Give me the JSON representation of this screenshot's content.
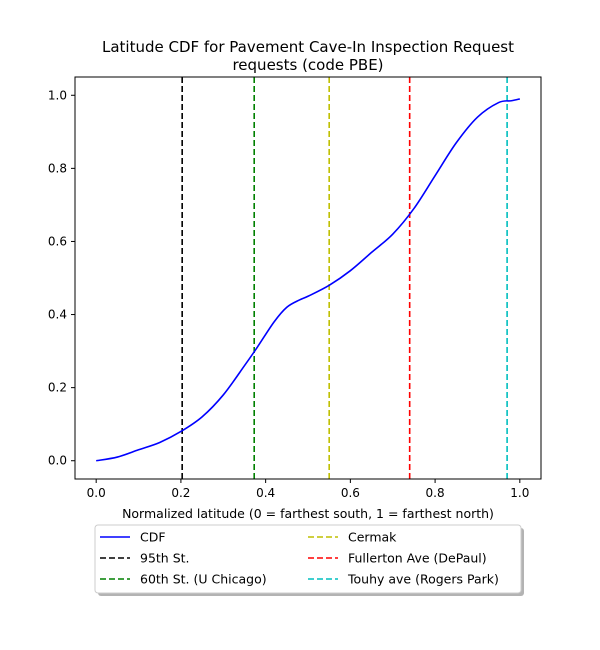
{
  "chart_data": {
    "type": "line",
    "title_line1": "Latitude CDF for Pavement Cave-In Inspection Request",
    "title_line2": "requests (code PBE)",
    "xlabel": "Normalized latitude (0 = farthest south, 1 = farthest north)",
    "ylabel": "",
    "xlim": [
      -0.05,
      1.05
    ],
    "ylim": [
      -0.05,
      1.05
    ],
    "xticks": [
      0.0,
      0.2,
      0.4,
      0.6,
      0.8,
      1.0
    ],
    "xtick_labels": [
      "0.0",
      "0.2",
      "0.4",
      "0.6",
      "0.8",
      "1.0"
    ],
    "yticks": [
      0.0,
      0.2,
      0.4,
      0.6,
      0.8,
      1.0
    ],
    "ytick_labels": [
      "0.0",
      "0.2",
      "0.4",
      "0.6",
      "0.8",
      "1.0"
    ],
    "grid": false,
    "legend_placement": "below",
    "series": [
      {
        "name": "CDF",
        "color": "#0000ff",
        "style": "solid",
        "x": [
          0.0,
          0.05,
          0.1,
          0.15,
          0.2,
          0.25,
          0.3,
          0.35,
          0.38,
          0.42,
          0.45,
          0.48,
          0.5,
          0.55,
          0.6,
          0.65,
          0.7,
          0.75,
          0.8,
          0.85,
          0.9,
          0.95,
          0.98,
          1.0
        ],
        "y": [
          0.0,
          0.01,
          0.03,
          0.05,
          0.08,
          0.12,
          0.18,
          0.26,
          0.31,
          0.38,
          0.42,
          0.44,
          0.45,
          0.48,
          0.52,
          0.57,
          0.62,
          0.69,
          0.78,
          0.87,
          0.94,
          0.98,
          0.985,
          0.99
        ]
      }
    ],
    "vlines": [
      {
        "name": "95th St.",
        "x": 0.203,
        "color": "#000000"
      },
      {
        "name": "60th St. (U Chicago)",
        "x": 0.373,
        "color": "#008000"
      },
      {
        "name": "Cermak",
        "x": 0.55,
        "color": "#bfbf00"
      },
      {
        "name": "Fullerton Ave (DePaul)",
        "x": 0.74,
        "color": "#ff0000"
      },
      {
        "name": "Touhy ave (Rogers Park)",
        "x": 0.97,
        "color": "#00bfbf"
      }
    ],
    "legend": [
      {
        "label": "CDF",
        "color": "#0000ff",
        "dash": "solid"
      },
      {
        "label": "95th St.",
        "color": "#000000",
        "dash": "dashed"
      },
      {
        "label": "60th St. (U Chicago)",
        "color": "#008000",
        "dash": "dashed"
      },
      {
        "label": "Cermak",
        "color": "#bfbf00",
        "dash": "dashed"
      },
      {
        "label": "Fullerton Ave (DePaul)",
        "color": "#ff0000",
        "dash": "dashed"
      },
      {
        "label": "Touhy ave (Rogers Park)",
        "color": "#00bfbf",
        "dash": "dashed"
      }
    ]
  }
}
